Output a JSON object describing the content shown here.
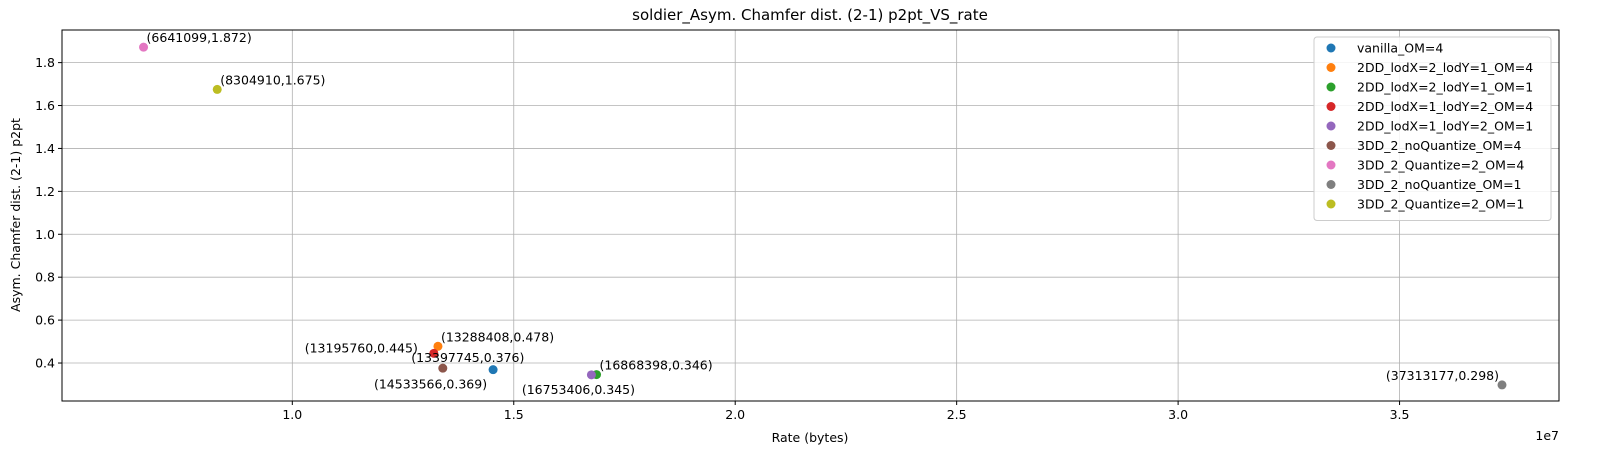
{
  "chart_data": {
    "type": "scatter",
    "title": "soldier_Asym. Chamfer dist. (2-1) p2pt_VS_rate",
    "xlabel": "Rate (bytes)",
    "ylabel": "Asym. Chamfer dist. (2-1) p2pt",
    "x_offset_label": "1e7",
    "xlim": [
      4800000,
      38600000
    ],
    "ylim": [
      0.223,
      1.952
    ],
    "xticks": [
      10000000,
      15000000,
      20000000,
      25000000,
      30000000,
      35000000
    ],
    "xtick_labels": [
      "1.0",
      "1.5",
      "2.0",
      "2.5",
      "3.0",
      "3.5"
    ],
    "yticks": [
      0.4,
      0.6,
      0.8,
      1.0,
      1.2,
      1.4,
      1.6,
      1.8
    ],
    "ytick_labels": [
      "0.4",
      "0.6",
      "0.8",
      "1.0",
      "1.2",
      "1.4",
      "1.6",
      "1.8"
    ],
    "grid": true,
    "legend_position": "top-right",
    "series": [
      {
        "name": "vanilla_OM=4",
        "color": "#1f77b4",
        "x": 14533566,
        "y": 0.369,
        "label": "(14533566,0.369)"
      },
      {
        "name": "2DD_lodX=2_lodY=1_OM=4",
        "color": "#ff7f0e",
        "x": 13288408,
        "y": 0.478,
        "label": "(13288408,0.478)"
      },
      {
        "name": "2DD_lodX=2_lodY=1_OM=1",
        "color": "#2ca02c",
        "x": 16868398,
        "y": 0.346,
        "label": "(16868398,0.346)"
      },
      {
        "name": "2DD_lodX=1_lodY=2_OM=4",
        "color": "#d62728",
        "x": 13195760,
        "y": 0.445,
        "label": "(13195760,0.445)"
      },
      {
        "name": "2DD_lodX=1_lodY=2_OM=1",
        "color": "#9467bd",
        "x": 16753406,
        "y": 0.345,
        "label": "(16753406,0.345)"
      },
      {
        "name": "3DD_2_noQuantize_OM=4",
        "color": "#8c564b",
        "x": 13397745,
        "y": 0.376,
        "label": "(13397745,0.376)"
      },
      {
        "name": "3DD_2_Quantize=2_OM=4",
        "color": "#e377c2",
        "x": 6641099,
        "y": 1.872,
        "label": "(6641099,1.872)"
      },
      {
        "name": "3DD_2_noQuantize_OM=1",
        "color": "#7f7f7f",
        "x": 37313177,
        "y": 0.298,
        "label": "(37313177,0.298)"
      },
      {
        "name": "3DD_2_Quantize=2_OM=1",
        "color": "#bcbd22",
        "x": 8304910,
        "y": 1.675,
        "label": "(8304910,1.675)"
      }
    ]
  }
}
